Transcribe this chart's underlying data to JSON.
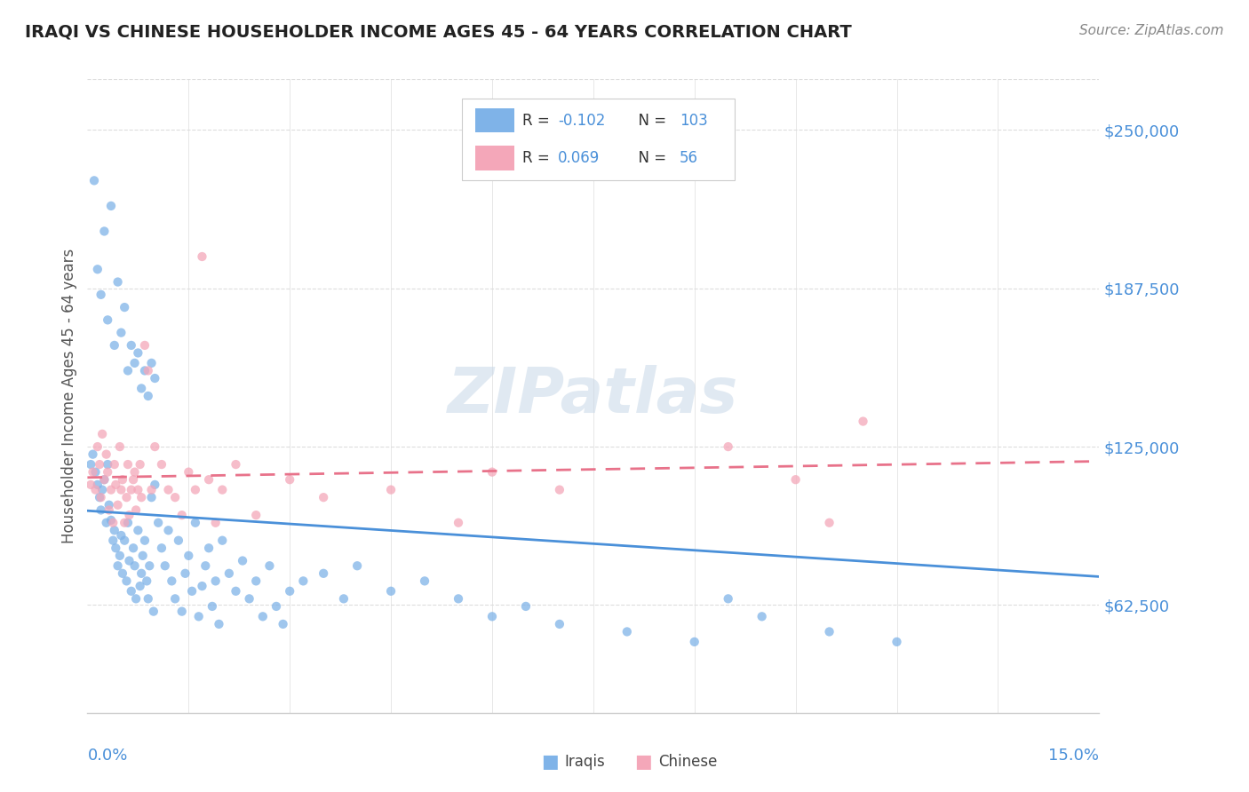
{
  "title": "IRAQI VS CHINESE HOUSEHOLDER INCOME AGES 45 - 64 YEARS CORRELATION CHART",
  "source_text": "Source: ZipAtlas.com",
  "ylabel": "Householder Income Ages 45 - 64 years",
  "yticks": [
    62500,
    125000,
    187500,
    250000
  ],
  "ytick_labels": [
    "$62,500",
    "$125,000",
    "$187,500",
    "$250,000"
  ],
  "xlim": [
    0.0,
    15.0
  ],
  "ylim": [
    20000,
    270000
  ],
  "iraqi_color": "#7FB3E8",
  "chinese_color": "#F4A7B9",
  "line_iraqi_color": "#4A90D9",
  "line_chinese_color": "#E8728A",
  "iraqi_R": -0.102,
  "iraqi_N": 103,
  "chinese_R": 0.069,
  "chinese_N": 56,
  "watermark": "ZIPatlas",
  "iraqi_x": [
    0.05,
    0.08,
    0.12,
    0.15,
    0.18,
    0.2,
    0.22,
    0.25,
    0.28,
    0.3,
    0.32,
    0.35,
    0.38,
    0.4,
    0.42,
    0.45,
    0.48,
    0.5,
    0.52,
    0.55,
    0.58,
    0.6,
    0.62,
    0.65,
    0.68,
    0.7,
    0.72,
    0.75,
    0.78,
    0.8,
    0.82,
    0.85,
    0.88,
    0.9,
    0.92,
    0.95,
    0.98,
    1.0,
    1.05,
    1.1,
    1.15,
    1.2,
    1.25,
    1.3,
    1.35,
    1.4,
    1.45,
    1.5,
    1.55,
    1.6,
    1.65,
    1.7,
    1.75,
    1.8,
    1.85,
    1.9,
    1.95,
    2.0,
    2.1,
    2.2,
    2.3,
    2.4,
    2.5,
    2.6,
    2.7,
    2.8,
    2.9,
    3.0,
    3.2,
    3.5,
    3.8,
    4.0,
    4.5,
    5.0,
    5.5,
    6.0,
    6.5,
    7.0,
    8.0,
    9.0,
    9.5,
    10.0,
    11.0,
    12.0,
    0.1,
    0.15,
    0.2,
    0.25,
    0.3,
    0.35,
    0.4,
    0.45,
    0.5,
    0.55,
    0.6,
    0.65,
    0.7,
    0.75,
    0.8,
    0.85,
    0.9,
    0.95,
    1.0
  ],
  "iraqi_y": [
    118000,
    122000,
    115000,
    110000,
    105000,
    100000,
    108000,
    112000,
    95000,
    118000,
    102000,
    96000,
    88000,
    92000,
    85000,
    78000,
    82000,
    90000,
    75000,
    88000,
    72000,
    95000,
    80000,
    68000,
    85000,
    78000,
    65000,
    92000,
    70000,
    75000,
    82000,
    88000,
    72000,
    65000,
    78000,
    105000,
    60000,
    110000,
    95000,
    85000,
    78000,
    92000,
    72000,
    65000,
    88000,
    60000,
    75000,
    82000,
    68000,
    95000,
    58000,
    70000,
    78000,
    85000,
    62000,
    72000,
    55000,
    88000,
    75000,
    68000,
    80000,
    65000,
    72000,
    58000,
    78000,
    62000,
    55000,
    68000,
    72000,
    75000,
    65000,
    78000,
    68000,
    72000,
    65000,
    58000,
    62000,
    55000,
    52000,
    48000,
    65000,
    58000,
    52000,
    48000,
    230000,
    195000,
    185000,
    210000,
    175000,
    220000,
    165000,
    190000,
    170000,
    180000,
    155000,
    165000,
    158000,
    162000,
    148000,
    155000,
    145000,
    158000,
    152000
  ],
  "chinese_x": [
    0.05,
    0.08,
    0.12,
    0.15,
    0.18,
    0.2,
    0.22,
    0.25,
    0.28,
    0.3,
    0.32,
    0.35,
    0.38,
    0.4,
    0.42,
    0.45,
    0.48,
    0.5,
    0.52,
    0.55,
    0.58,
    0.6,
    0.62,
    0.65,
    0.68,
    0.7,
    0.72,
    0.75,
    0.78,
    0.8,
    0.85,
    0.9,
    0.95,
    1.0,
    1.1,
    1.2,
    1.3,
    1.4,
    1.5,
    1.6,
    1.7,
    1.8,
    1.9,
    2.0,
    2.2,
    2.5,
    3.0,
    3.5,
    4.5,
    5.5,
    6.0,
    7.0,
    9.5,
    10.5,
    11.0,
    11.5
  ],
  "chinese_y": [
    110000,
    115000,
    108000,
    125000,
    118000,
    105000,
    130000,
    112000,
    122000,
    115000,
    100000,
    108000,
    95000,
    118000,
    110000,
    102000,
    125000,
    108000,
    112000,
    95000,
    105000,
    118000,
    98000,
    108000,
    112000,
    115000,
    100000,
    108000,
    118000,
    105000,
    165000,
    155000,
    108000,
    125000,
    118000,
    108000,
    105000,
    98000,
    115000,
    108000,
    200000,
    112000,
    95000,
    108000,
    118000,
    98000,
    112000,
    105000,
    108000,
    95000,
    115000,
    108000,
    125000,
    112000,
    95000,
    135000
  ]
}
